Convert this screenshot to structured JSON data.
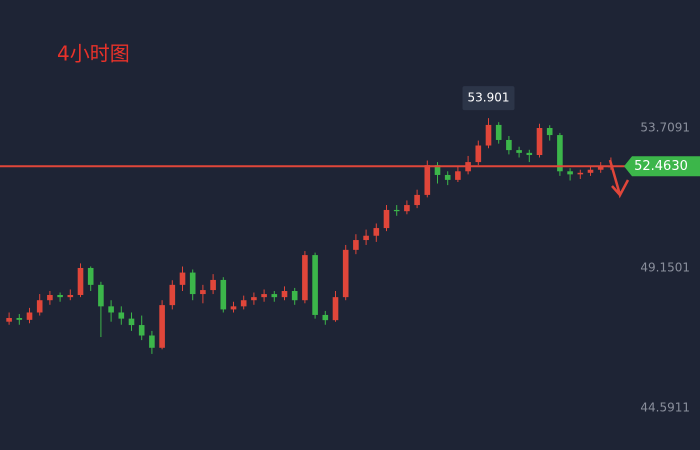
{
  "chart_data": {
    "type": "candlestick",
    "title": "4小时图",
    "up_color": "#e0463a",
    "down_color": "#3cb64a",
    "ylim": [
      43.22,
      57.88
    ],
    "yticks": [
      {
        "value": 44.5911,
        "label": "44.5911"
      },
      {
        "value": 49.1501,
        "label": "49.1501"
      },
      {
        "value": 53.7091,
        "label": "53.7091"
      }
    ],
    "last_price": {
      "value": 52.463,
      "label": "52.4630"
    },
    "annotation": {
      "value": 53.901
    },
    "ohlc": [
      [
        47.4,
        47.7,
        47.3,
        47.52
      ],
      [
        47.52,
        47.65,
        47.3,
        47.46
      ],
      [
        47.46,
        47.85,
        47.35,
        47.7
      ],
      [
        47.7,
        48.3,
        47.6,
        48.1
      ],
      [
        48.1,
        48.4,
        47.95,
        48.27
      ],
      [
        48.27,
        48.35,
        48.05,
        48.2
      ],
      [
        48.2,
        48.45,
        48.1,
        48.27
      ],
      [
        48.27,
        49.3,
        48.2,
        49.15
      ],
      [
        49.15,
        49.2,
        48.4,
        48.6
      ],
      [
        48.6,
        48.7,
        46.9,
        47.9
      ],
      [
        47.9,
        48.1,
        47.4,
        47.7
      ],
      [
        47.7,
        47.9,
        47.3,
        47.5
      ],
      [
        47.5,
        47.7,
        47.1,
        47.29
      ],
      [
        47.29,
        47.6,
        46.8,
        46.95
      ],
      [
        46.95,
        47.1,
        46.35,
        46.55
      ],
      [
        46.55,
        48.1,
        46.5,
        47.94
      ],
      [
        47.94,
        48.75,
        47.8,
        48.6
      ],
      [
        48.6,
        49.2,
        48.4,
        49.0
      ],
      [
        49.0,
        49.1,
        48.1,
        48.3
      ],
      [
        48.3,
        48.6,
        48.0,
        48.43
      ],
      [
        48.43,
        48.95,
        48.3,
        48.76
      ],
      [
        48.76,
        48.85,
        47.7,
        47.8
      ],
      [
        47.8,
        48.05,
        47.7,
        47.9
      ],
      [
        47.9,
        48.25,
        47.8,
        48.1
      ],
      [
        48.1,
        48.35,
        47.95,
        48.2
      ],
      [
        48.2,
        48.45,
        48.05,
        48.3
      ],
      [
        48.3,
        48.4,
        48.05,
        48.2
      ],
      [
        48.2,
        48.55,
        48.1,
        48.4
      ],
      [
        48.4,
        48.5,
        47.95,
        48.1
      ],
      [
        48.1,
        49.7,
        48.0,
        49.57
      ],
      [
        49.57,
        49.65,
        47.5,
        47.62
      ],
      [
        47.62,
        47.75,
        47.3,
        47.45
      ],
      [
        47.45,
        48.4,
        47.4,
        48.2
      ],
      [
        48.2,
        49.9,
        48.1,
        49.74
      ],
      [
        49.74,
        50.25,
        49.6,
        50.06
      ],
      [
        50.06,
        50.4,
        49.9,
        50.2
      ],
      [
        50.2,
        50.6,
        50.0,
        50.45
      ],
      [
        50.45,
        51.2,
        50.35,
        51.04
      ],
      [
        51.04,
        51.2,
        50.85,
        51.0
      ],
      [
        51.0,
        51.35,
        50.9,
        51.2
      ],
      [
        51.2,
        51.7,
        51.1,
        51.53
      ],
      [
        51.53,
        52.65,
        51.45,
        52.5
      ],
      [
        52.5,
        52.6,
        51.9,
        52.18
      ],
      [
        52.18,
        52.3,
        51.85,
        52.02
      ],
      [
        52.02,
        52.45,
        51.95,
        52.3
      ],
      [
        52.3,
        52.8,
        52.2,
        52.6
      ],
      [
        52.6,
        53.3,
        52.5,
        53.14
      ],
      [
        53.14,
        54.03,
        53.05,
        53.81
      ],
      [
        53.81,
        53.9,
        53.2,
        53.32
      ],
      [
        53.32,
        53.45,
        52.85,
        52.99
      ],
      [
        52.99,
        53.1,
        52.75,
        52.9
      ],
      [
        52.9,
        53.0,
        52.6,
        52.83
      ],
      [
        52.83,
        53.85,
        52.75,
        53.71
      ],
      [
        53.71,
        53.8,
        53.3,
        53.48
      ],
      [
        53.48,
        53.55,
        52.15,
        52.3
      ],
      [
        52.3,
        52.4,
        52.0,
        52.2
      ],
      [
        52.2,
        52.35,
        52.05,
        52.25
      ],
      [
        52.25,
        52.45,
        52.15,
        52.35
      ],
      [
        52.35,
        52.6,
        52.25,
        52.45
      ],
      [
        52.45,
        52.75,
        52.35,
        52.463
      ]
    ]
  }
}
